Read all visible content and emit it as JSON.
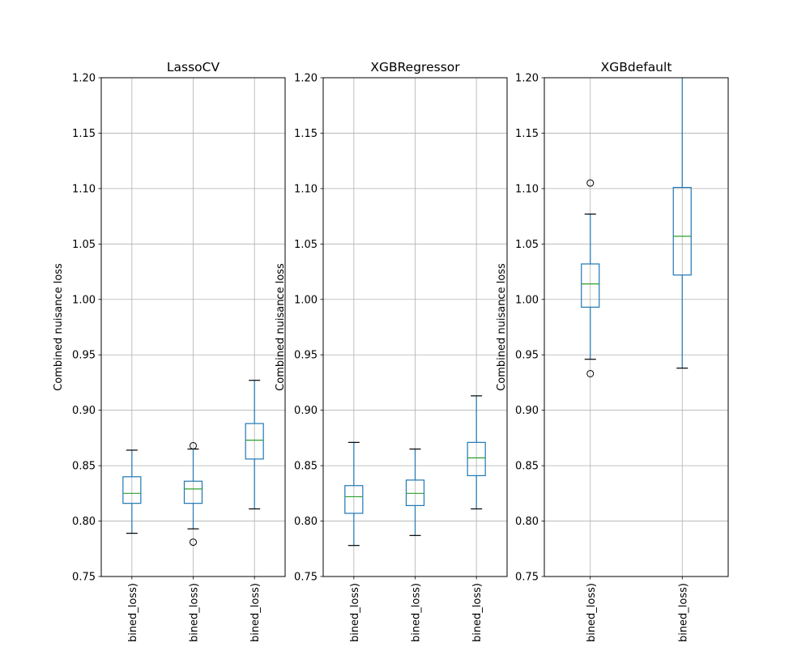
{
  "chart_data": [
    {
      "type": "box",
      "title": "LassoCV",
      "ylabel": "Combined nuisance loss",
      "ylim": [
        0.75,
        1.2
      ],
      "yticks": [
        "0.75",
        "0.80",
        "0.85",
        "0.90",
        "0.95",
        "1.00",
        "1.05",
        "1.10",
        "1.15",
        "1.20"
      ],
      "grid": true,
      "categories": [
        "bined_loss)",
        "bined_loss)",
        "bined_loss)"
      ],
      "boxes": [
        {
          "whislo": 0.789,
          "q1": 0.816,
          "med": 0.825,
          "q3": 0.84,
          "whishi": 0.864,
          "fliers": []
        },
        {
          "whislo": 0.793,
          "q1": 0.816,
          "med": 0.829,
          "q3": 0.836,
          "whishi": 0.865,
          "fliers": [
            0.868,
            0.781
          ]
        },
        {
          "whislo": 0.811,
          "q1": 0.856,
          "med": 0.873,
          "q3": 0.888,
          "whishi": 0.927,
          "fliers": []
        }
      ]
    },
    {
      "type": "box",
      "title": "XGBRegressor",
      "ylabel": "Combined nuisance loss",
      "ylim": [
        0.75,
        1.2
      ],
      "yticks": [
        "0.75",
        "0.80",
        "0.85",
        "0.90",
        "0.95",
        "1.00",
        "1.05",
        "1.10",
        "1.15",
        "1.20"
      ],
      "grid": true,
      "categories": [
        "bined_loss)",
        "bined_loss)",
        "bined_loss)"
      ],
      "boxes": [
        {
          "whislo": 0.778,
          "q1": 0.807,
          "med": 0.822,
          "q3": 0.832,
          "whishi": 0.871,
          "fliers": []
        },
        {
          "whislo": 0.787,
          "q1": 0.814,
          "med": 0.825,
          "q3": 0.837,
          "whishi": 0.865,
          "fliers": []
        },
        {
          "whislo": 0.811,
          "q1": 0.841,
          "med": 0.857,
          "q3": 0.871,
          "whishi": 0.913,
          "fliers": []
        }
      ]
    },
    {
      "type": "box",
      "title": "XGBdefault",
      "ylabel": "Combined nuisance loss",
      "ylim": [
        0.75,
        1.2
      ],
      "yticks": [
        "0.75",
        "0.80",
        "0.85",
        "0.90",
        "0.95",
        "1.00",
        "1.05",
        "1.10",
        "1.15",
        "1.20"
      ],
      "grid": true,
      "categories": [
        "bined_loss)",
        "bined_loss)"
      ],
      "boxes": [
        {
          "whislo": 0.946,
          "q1": 0.993,
          "med": 1.014,
          "q3": 1.032,
          "whishi": 1.077,
          "fliers": [
            1.105,
            0.933
          ]
        },
        {
          "whislo": 0.938,
          "q1": 1.022,
          "med": 1.057,
          "q3": 1.101,
          "whishi": 1.25,
          "fliers": []
        }
      ]
    }
  ],
  "colors": {
    "box": "#1f77b4",
    "median": "#2ca02c",
    "grid": "#b0b0b0"
  }
}
